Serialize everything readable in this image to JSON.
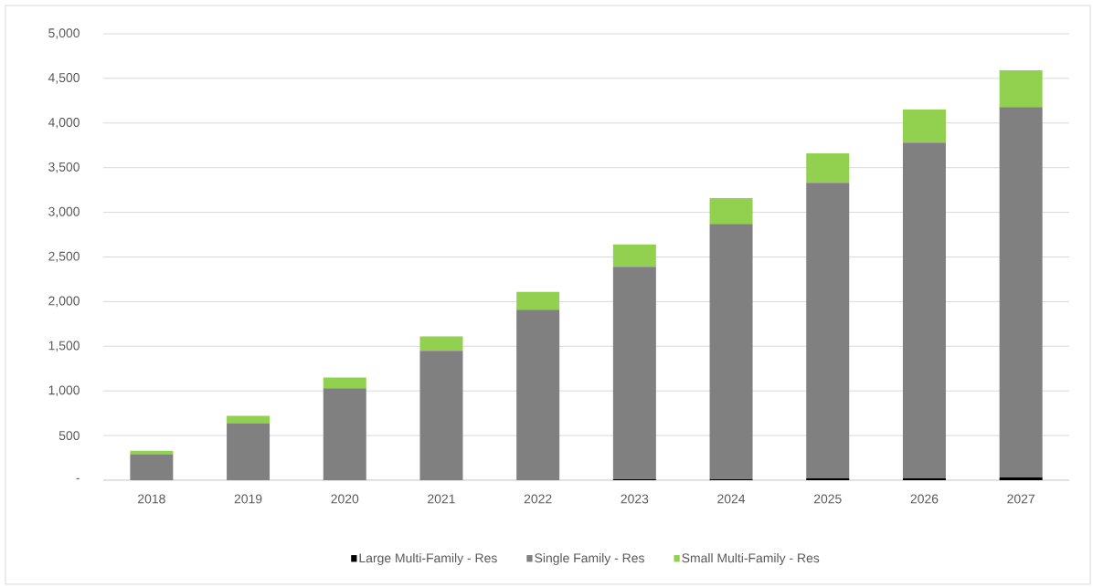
{
  "chart_data": {
    "type": "bar",
    "stacked": true,
    "categories": [
      "2018",
      "2019",
      "2020",
      "2021",
      "2022",
      "2023",
      "2024",
      "2025",
      "2026",
      "2027"
    ],
    "series": [
      {
        "name": "Large Multi-Family - Res",
        "color": "#000000",
        "values": [
          null,
          null,
          null,
          null,
          null,
          10,
          10,
          20,
          20,
          30
        ]
      },
      {
        "name": "Single Family - Res",
        "color": "#808080",
        "values": [
          290,
          640,
          1030,
          1450,
          1910,
          2380,
          2860,
          3310,
          3760,
          4150
        ]
      },
      {
        "name": "Small Multi-Family - Res",
        "color": "#92d050",
        "values": [
          40,
          80,
          120,
          160,
          200,
          250,
          290,
          330,
          370,
          410
        ]
      }
    ],
    "ylim": [
      0,
      5000
    ],
    "yticks": [
      {
        "value": 0,
        "label": "-"
      },
      500,
      {
        "value": 1000,
        "label": "1,000"
      },
      {
        "value": 1500,
        "label": "1,500"
      },
      {
        "value": 2000,
        "label": "2,000"
      },
      {
        "value": 2500,
        "label": "2,500"
      },
      {
        "value": 3000,
        "label": "3,000"
      },
      {
        "value": 3500,
        "label": "3,500"
      },
      {
        "value": 4000,
        "label": "4,000"
      },
      {
        "value": 4500,
        "label": "4,500"
      },
      {
        "value": 5000,
        "label": "5,000"
      }
    ],
    "grid": "y",
    "legend": "bottom"
  }
}
